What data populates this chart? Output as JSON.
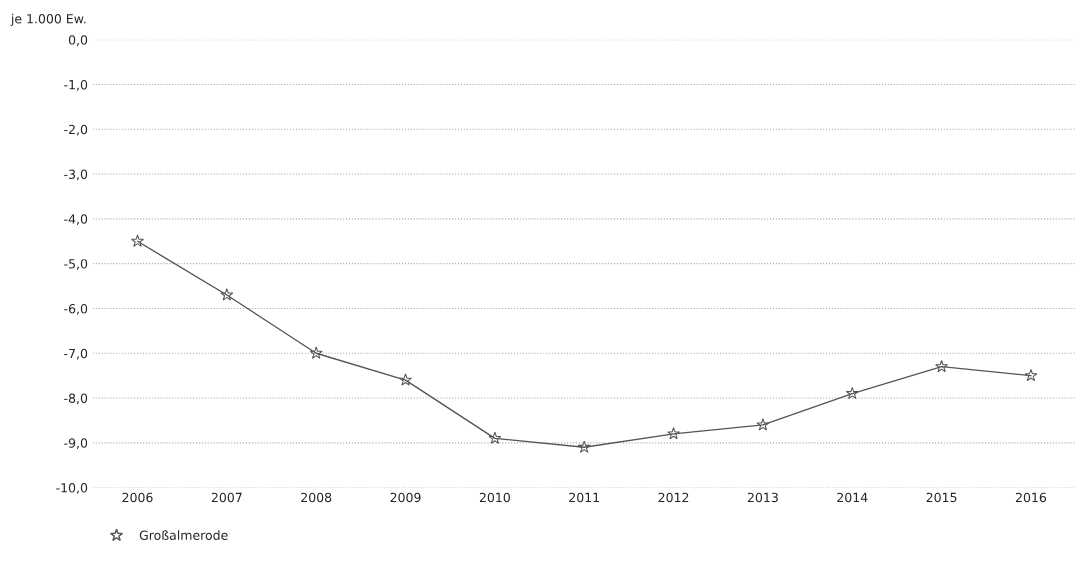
{
  "chart_data": {
    "type": "line",
    "ylabel": "je 1.000 Ew.",
    "categories": [
      "2006",
      "2007",
      "2008",
      "2009",
      "2010",
      "2011",
      "2012",
      "2013",
      "2014",
      "2015",
      "2016"
    ],
    "series": [
      {
        "name": "Großalmerode",
        "color": "#555555",
        "values": [
          -4.5,
          -5.7,
          -7.0,
          -7.6,
          -8.9,
          -9.1,
          -8.8,
          -8.6,
          -7.9,
          -7.3,
          -7.5
        ]
      }
    ],
    "ylim": [
      -10,
      0
    ],
    "yticks": [
      {
        "value": 0,
        "label": "0,0"
      },
      {
        "value": -1,
        "label": "-1,0"
      },
      {
        "value": -2,
        "label": "-2,0"
      },
      {
        "value": -3,
        "label": "-3,0"
      },
      {
        "value": -4,
        "label": "-4,0"
      },
      {
        "value": -5,
        "label": "-5,0"
      },
      {
        "value": -6,
        "label": "-6,0"
      },
      {
        "value": -7,
        "label": "-7,0"
      },
      {
        "value": -8,
        "label": "-8,0"
      },
      {
        "value": -9,
        "label": "-9,0"
      },
      {
        "value": -10,
        "label": "-10,0"
      }
    ],
    "grid": "y",
    "legend": "bottom left",
    "marker": "star",
    "line_style": "solid"
  }
}
